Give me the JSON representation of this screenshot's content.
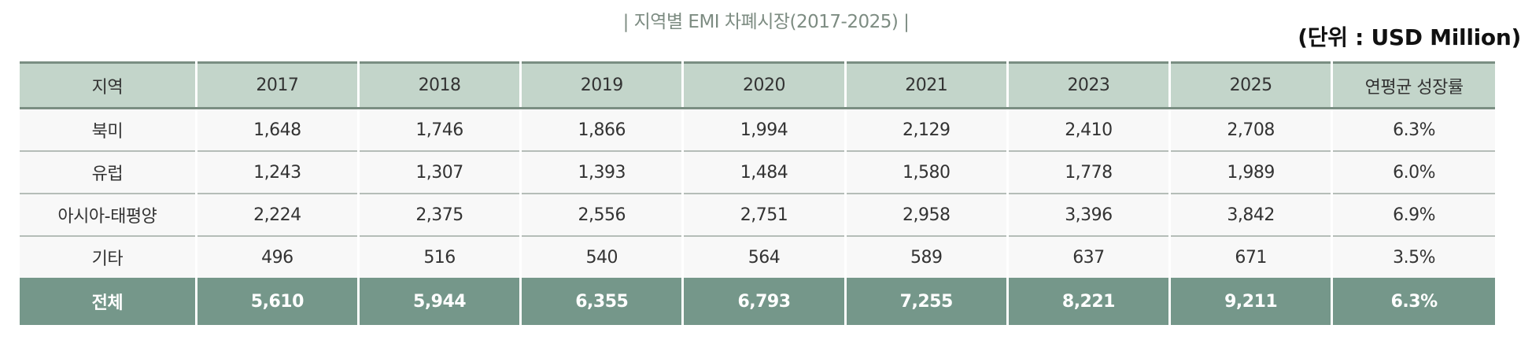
{
  "title": "| 지역별 EMI 차폐시장(2017-2025) |",
  "unit": "(단위 : USD Million)",
  "table": {
    "headers": [
      "지역",
      "2017",
      "2018",
      "2019",
      "2020",
      "2021",
      "2023",
      "2025",
      "연평균 성장률"
    ],
    "rows": [
      [
        "북미",
        "1,648",
        "1,746",
        "1,866",
        "1,994",
        "2,129",
        "2,410",
        "2,708",
        "6.3%"
      ],
      [
        "유럽",
        "1,243",
        "1,307",
        "1,393",
        "1,484",
        "1,580",
        "1,778",
        "1,989",
        "6.0%"
      ],
      [
        "아시아-태평양",
        "2,224",
        "2,375",
        "2,556",
        "2,751",
        "2,958",
        "3,396",
        "3,842",
        "6.9%"
      ],
      [
        "기타",
        "496",
        "516",
        "540",
        "564",
        "589",
        "637",
        "671",
        "3.5%"
      ]
    ],
    "total": [
      "전체",
      "5,610",
      "5,944",
      "6,355",
      "6,793",
      "7,255",
      "8,221",
      "9,211",
      "6.3%"
    ]
  },
  "colors": {
    "header_bg": "#c3d5ca",
    "header_border": "#7a8e82",
    "row_bg": "#f8f8f8",
    "total_bg": "#75978a",
    "title_text": "#7d8c82"
  },
  "chart_data": {
    "type": "table",
    "title": "지역별 EMI 차폐시장(2017-2025)",
    "unit": "USD Million",
    "categories": [
      "2017",
      "2018",
      "2019",
      "2020",
      "2021",
      "2023",
      "2025"
    ],
    "series": [
      {
        "name": "북미",
        "values": [
          1648,
          1746,
          1866,
          1994,
          2129,
          2410,
          2708
        ],
        "cagr": "6.3%"
      },
      {
        "name": "유럽",
        "values": [
          1243,
          1307,
          1393,
          1484,
          1580,
          1778,
          1989
        ],
        "cagr": "6.0%"
      },
      {
        "name": "아시아-태평양",
        "values": [
          2224,
          2375,
          2556,
          2751,
          2958,
          3396,
          3842
        ],
        "cagr": "6.9%"
      },
      {
        "name": "기타",
        "values": [
          496,
          516,
          540,
          564,
          589,
          637,
          671
        ],
        "cagr": "3.5%"
      },
      {
        "name": "전체",
        "values": [
          5610,
          5944,
          6355,
          6793,
          7255,
          8221,
          9211
        ],
        "cagr": "6.3%"
      }
    ],
    "columns": [
      "지역",
      "2017",
      "2018",
      "2019",
      "2020",
      "2021",
      "2023",
      "2025",
      "연평균 성장률"
    ]
  }
}
